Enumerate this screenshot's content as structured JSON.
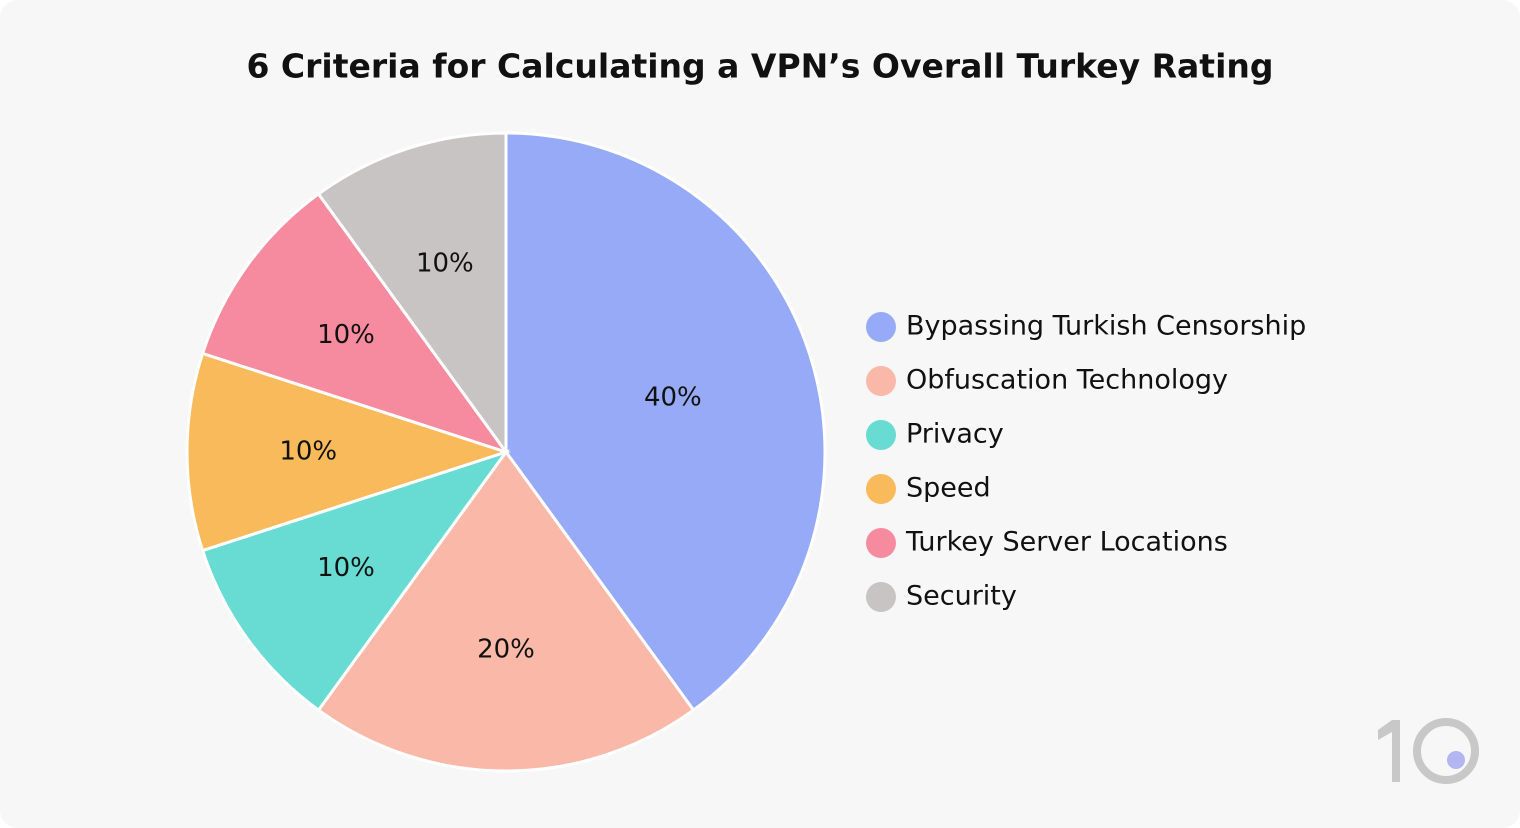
{
  "chart_data": {
    "type": "pie",
    "title": "6 Criteria for Calculating a VPN’s Overall Turkey Rating",
    "categories": [
      "Bypassing Turkish Censorship",
      "Obfuscation Technology",
      "Privacy",
      "Speed",
      "Turkey Server Locations",
      "Security"
    ],
    "values": [
      40,
      20,
      10,
      10,
      10,
      10
    ],
    "value_labels": [
      "40%",
      "20%",
      "10%",
      "10%",
      "10%",
      "10%"
    ],
    "colors": [
      "#97aaf7",
      "#f9b8a8",
      "#68dbd2",
      "#f9ba5b",
      "#f68ba0",
      "#c8c4c3"
    ],
    "legend": "right"
  }
}
